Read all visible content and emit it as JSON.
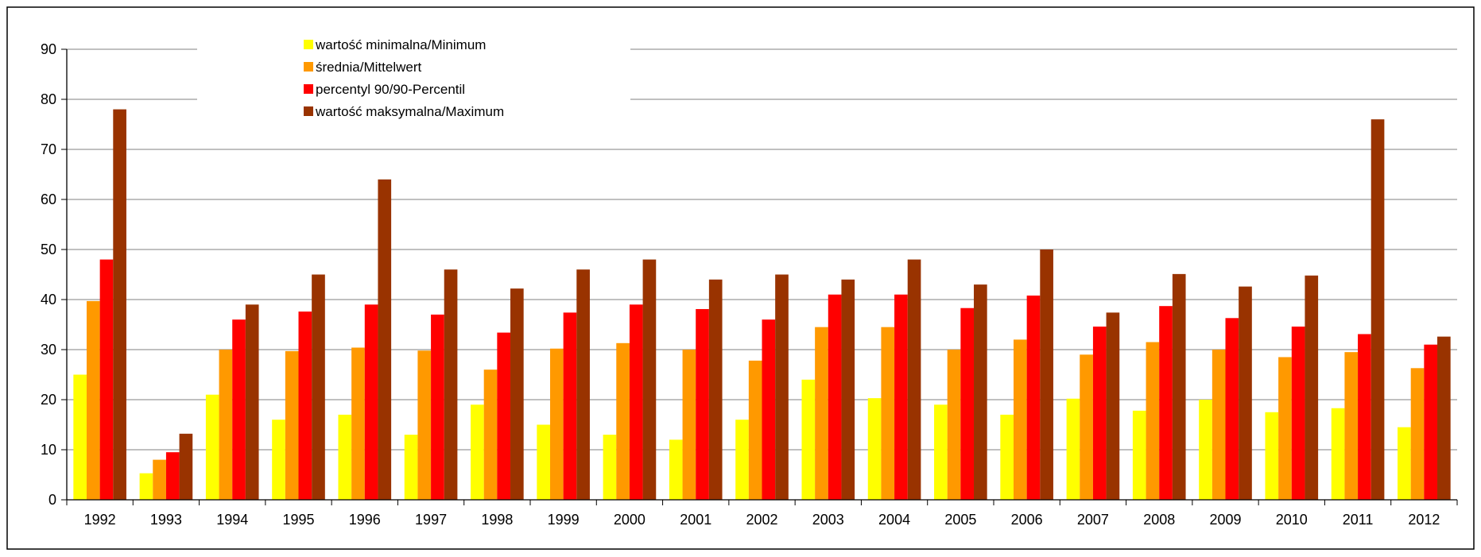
{
  "chart_data": {
    "type": "bar",
    "title": "",
    "xlabel": "",
    "ylabel": "",
    "ylim": [
      0,
      90
    ],
    "yticks": [
      0,
      10,
      20,
      30,
      40,
      50,
      60,
      70,
      80,
      90
    ],
    "grid": true,
    "legend_position": "top-left",
    "categories": [
      "1992",
      "1993",
      "1994",
      "1995",
      "1996",
      "1997",
      "1998",
      "1999",
      "2000",
      "2001",
      "2002",
      "2003",
      "2004",
      "2005",
      "2006",
      "2007",
      "2008",
      "2009",
      "2010",
      "2011",
      "2012"
    ],
    "series": [
      {
        "name": "wartość minimalna/Minimum",
        "color": "#ffff00",
        "values": [
          25,
          5.3,
          21,
          16,
          17,
          13,
          19,
          15,
          13,
          12,
          16,
          24,
          20.3,
          19,
          17,
          20.2,
          17.8,
          20,
          17.5,
          18.3,
          14.5
        ]
      },
      {
        "name": "średnia/Mittelwert",
        "color": "#ff9900",
        "values": [
          39.7,
          8,
          30,
          29.7,
          30.4,
          29.8,
          26,
          30.2,
          31.3,
          30,
          27.8,
          34.5,
          34.5,
          30,
          32,
          29,
          31.5,
          30,
          28.5,
          29.5,
          26.3
        ]
      },
      {
        "name": "percentyl 90/90-Percentil",
        "color": "#ff0000",
        "values": [
          48,
          9.5,
          36,
          37.6,
          39,
          37,
          33.4,
          37.4,
          39,
          38.1,
          36,
          41,
          41,
          38.3,
          40.8,
          34.6,
          38.7,
          36.3,
          34.6,
          33.1,
          31
        ]
      },
      {
        "name": "wartość maksymalna/Maximum",
        "color": "#993300",
        "values": [
          78,
          13.2,
          39,
          45,
          64,
          46,
          42.2,
          46,
          48,
          44,
          45,
          44,
          48,
          43,
          50,
          37.4,
          45.1,
          42.6,
          44.8,
          76,
          32.6
        ]
      }
    ]
  }
}
